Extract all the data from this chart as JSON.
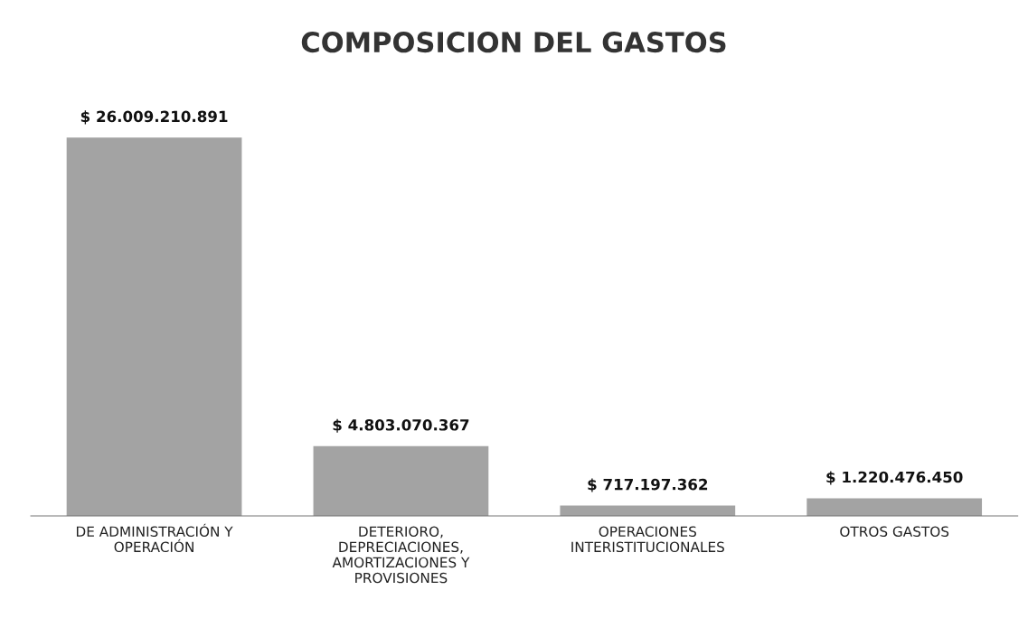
{
  "chart_data": {
    "type": "bar",
    "title": "COMPOSICION DEL GASTOS",
    "categories": [
      "DE ADMINISTRACIÓN Y\nOPERACIÓN",
      "DETERIORO,\nDEPRECIACIONES,\nAMORTIZACIONES Y\nPROVISIONES",
      "OPERACIONES\nINTERISTITUCIONALES",
      "OTROS GASTOS"
    ],
    "values": [
      26009210891,
      4803070367,
      717197362,
      1220476450
    ],
    "value_labels": [
      "$ 26.009.210.891",
      "$ 4.803.070.367",
      "$ 717.197.362",
      "$ 1.220.476.450"
    ],
    "color": "#a3a3a3",
    "grid": false,
    "legend": false
  }
}
